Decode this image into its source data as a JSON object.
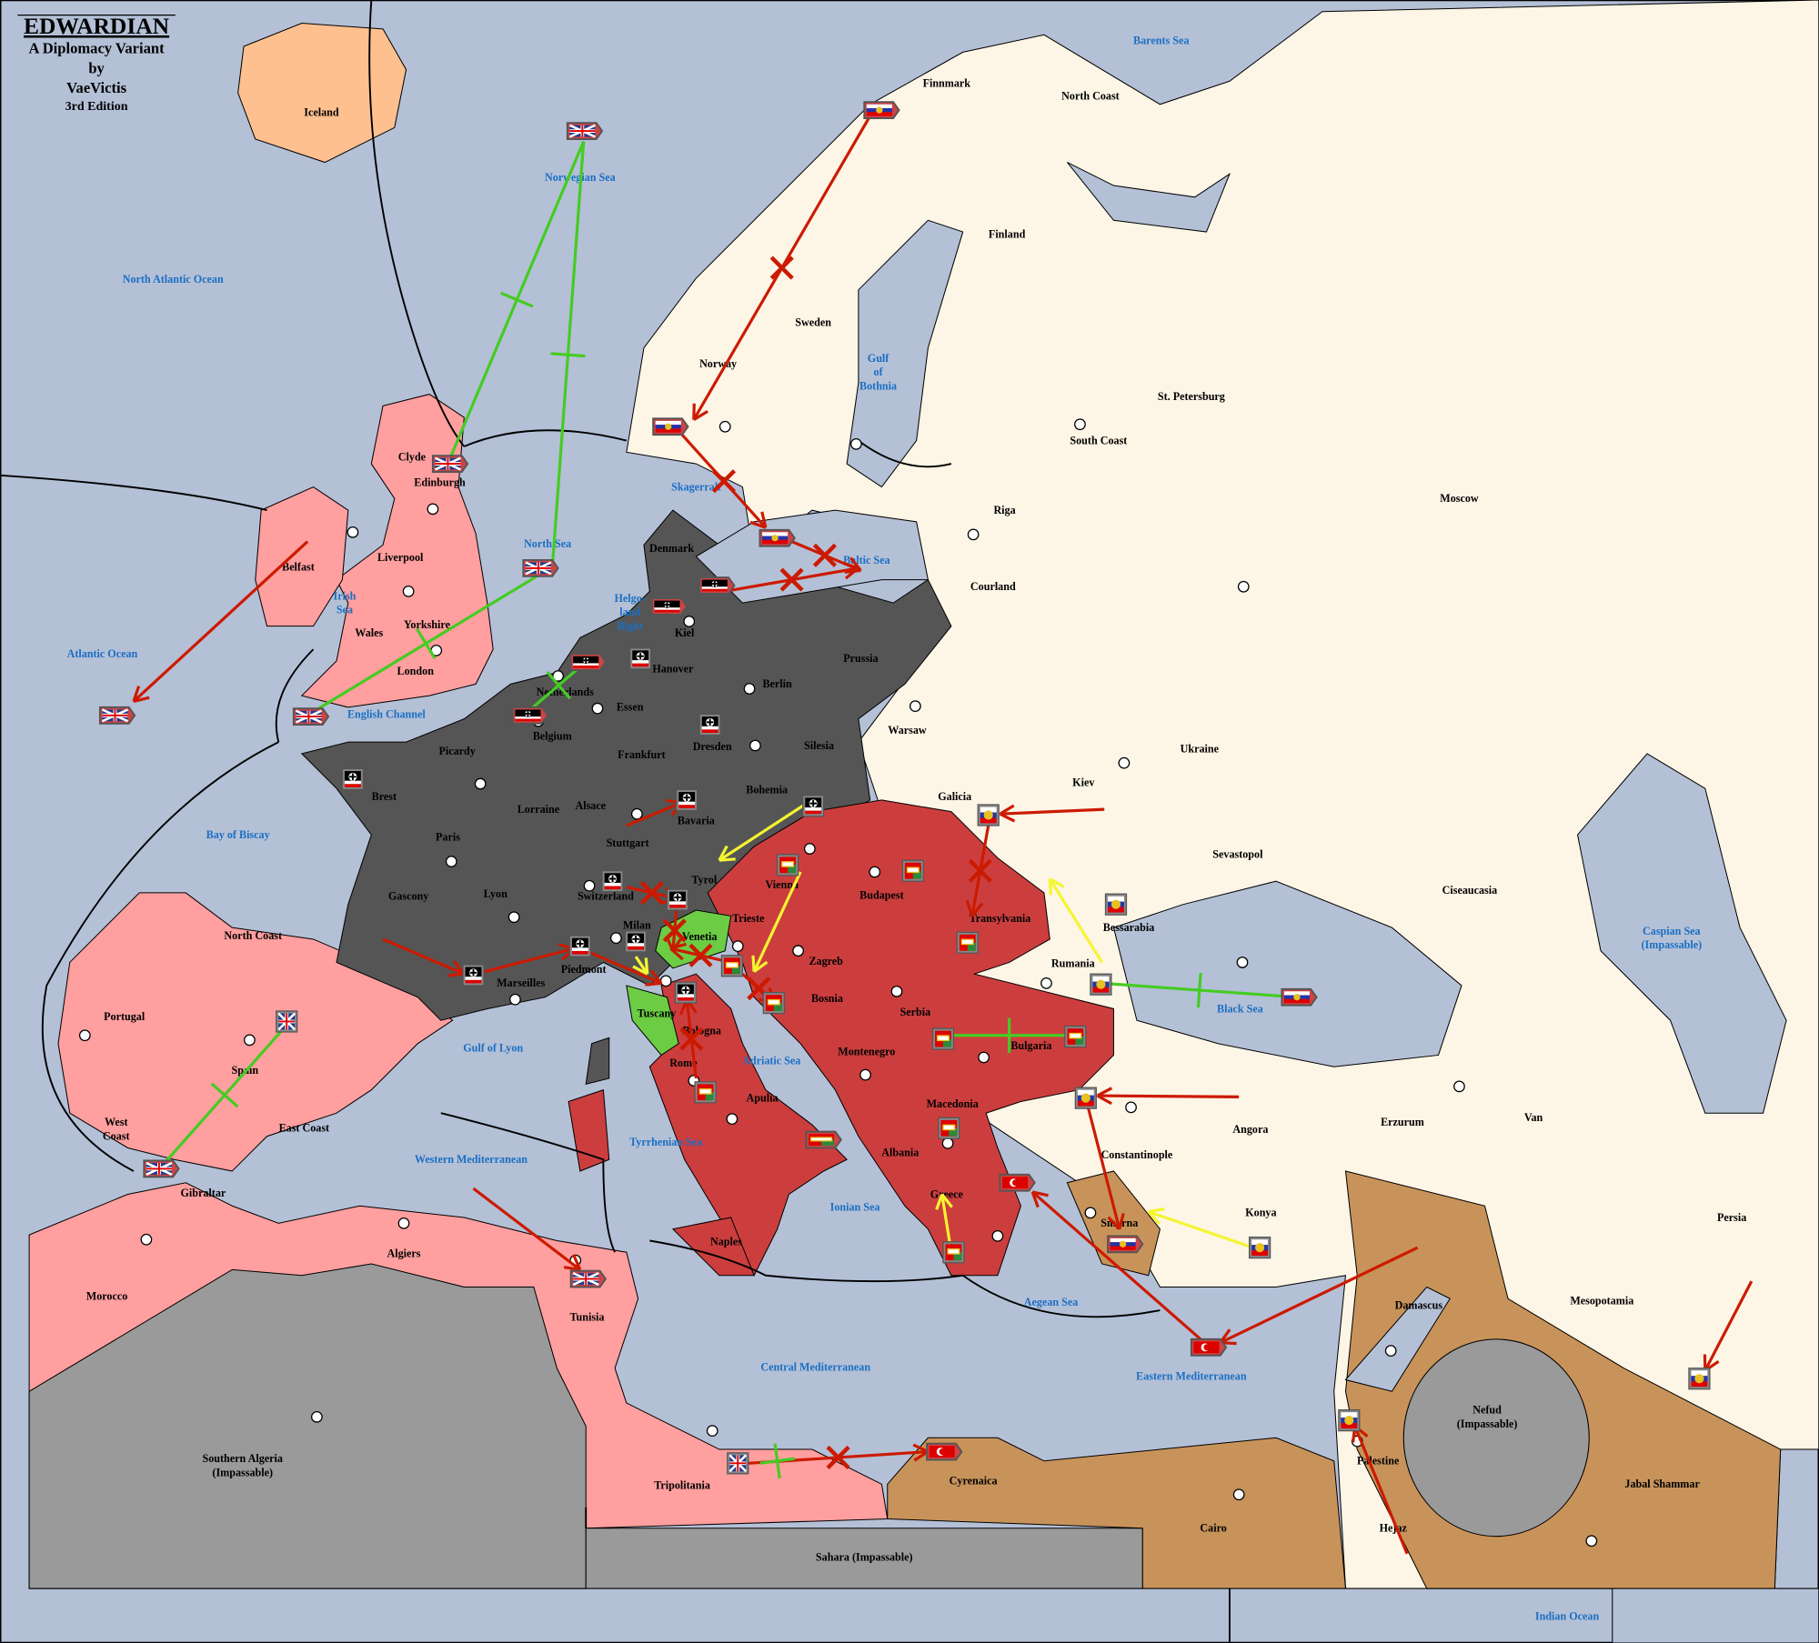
{
  "title": {
    "name": "EDWARDIAN",
    "subtitle": "A Diplomacy Variant",
    "by": "by",
    "author": "VaeVictis",
    "edition": "3rd Edition"
  },
  "colors": {
    "sea": "#b4c0d6",
    "neutral": "#fdf5e6",
    "england": "#ff9f9f",
    "germany": "#555555",
    "austria": "#cc3e3e",
    "italy": "#6ccc44",
    "turkey": "#c8935a",
    "iceland": "#ffc090",
    "impassable": "#9a9a9a",
    "order_move": "#cc1a00",
    "order_support": "#f5f530",
    "order_convoy": "#44cc22"
  },
  "land_labels": [
    "Iceland",
    "Finnmark",
    "North Coast",
    "Finland",
    "Sweden",
    "Norway",
    "St. Petersburg",
    "South Coast",
    "Moscow",
    "Riga",
    "Courland",
    "Denmark",
    "Clyde",
    "Edinburgh",
    "Belfast",
    "Liverpool",
    "Yorkshire",
    "Wales",
    "London",
    "Kiel",
    "Hanover",
    "Berlin",
    "Prussia",
    "Netherlands",
    "Essen",
    "Belgium",
    "Warsaw",
    "Silesia",
    "Dresden",
    "Frankfurt",
    "Picardy",
    "Ukraine",
    "Kiev",
    "Brest",
    "Bohemia",
    "Galicia",
    "Alsace",
    "Lorraine",
    "Bavaria",
    "Paris",
    "Stuttgart",
    "Sevastopol",
    "Tyrol",
    "Vienna",
    "Budapest",
    "Switzerland",
    "Gascony",
    "Lyon",
    "Ciseaucasia",
    "Transylvania",
    "Trieste",
    "Milan",
    "Venetia",
    "Bessarabia",
    "North Coast",
    "Zagreb",
    "Rumania",
    "Piedmont",
    "Marseilles",
    "Bosnia",
    "Serbia",
    "Tuscany",
    "Portugal",
    "Bologna",
    "Bulgaria",
    "Montenegro",
    "Spain",
    "Rome",
    "Apulia",
    "Macedonia",
    "Angora",
    "Erzurum",
    "Van",
    "West\nCoast",
    "East Coast",
    "Constantinople",
    "Albania",
    "Gibraltar",
    "Greece",
    "Konya",
    "Persia",
    "Smyrna",
    "Naples",
    "Algiers",
    "Morocco",
    "Mesopotamia",
    "Damascus",
    "Tunisia",
    "Nefud\n(Impassable)",
    "Southern Algeria\n(Impassable)",
    "Palestine",
    "Cyrenaica",
    "Tripolitania",
    "Jabal Shammar",
    "Cairo",
    "Hejaz",
    "Sahara (Impassable)"
  ],
  "sea_labels": [
    "Barents Sea",
    "Norwegian Sea",
    "North Atlantic Ocean",
    "Gulf\nof\nBothnia",
    "Skagerrak",
    "North Sea",
    "Baltic Sea",
    "Irish\nSea",
    "Helgo-\nland\nBight",
    "Atlantic Ocean",
    "English Channel",
    "Bay of Biscay",
    "Caspian Sea\n(Impassable)",
    "Black Sea",
    "Gulf of Lyon",
    "Adriatic Sea",
    "Tyrrhenian Sea",
    "Western Mediterranean",
    "Ionian Sea",
    "Aegean Sea",
    "Central Mediterranean",
    "Eastern Mediterranean",
    "Indian Ocean"
  ],
  "units": {
    "england": "union-jack-flag",
    "russia": "russian-flag",
    "germany": "german-iron-cross-flag",
    "austria": "austro-hungarian-flag",
    "turkey": "turkish-crescent-flag"
  }
}
